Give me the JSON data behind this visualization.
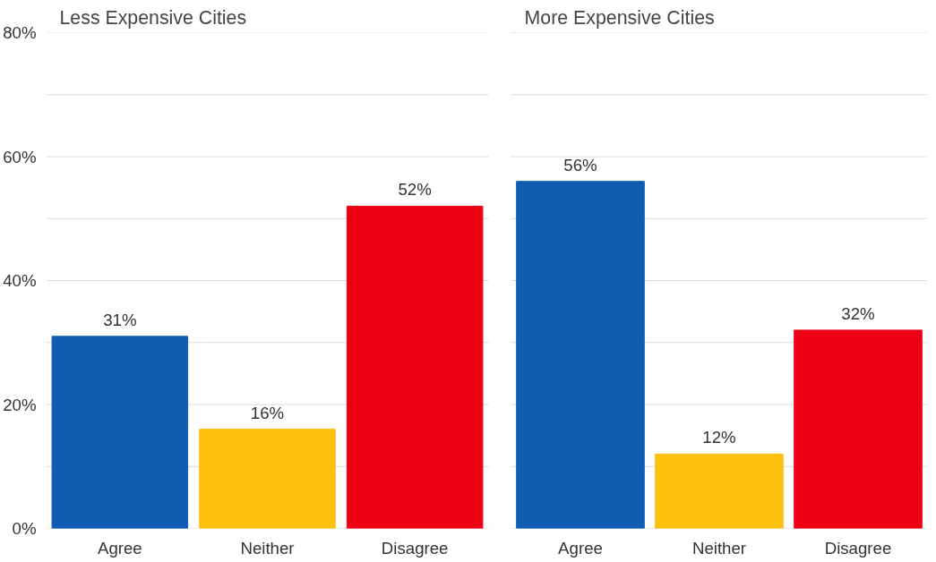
{
  "chart_data": [
    {
      "type": "bar",
      "title": "Less Expensive Cities",
      "categories": [
        "Agree",
        "Neither",
        "Disagree"
      ],
      "values": [
        31,
        16,
        52
      ],
      "colors": [
        "#0f5db3",
        "#fcc10f",
        "#ee0014"
      ],
      "ylim": [
        0,
        80
      ],
      "yticks": [
        {
          "value": 0,
          "label": "0%"
        },
        {
          "value": 10,
          "label": null
        },
        {
          "value": 20,
          "label": "20%"
        },
        {
          "value": 30,
          "label": null
        },
        {
          "value": 40,
          "label": "40%"
        },
        {
          "value": 50,
          "label": null
        },
        {
          "value": 60,
          "label": "60%"
        },
        {
          "value": 70,
          "label": null
        },
        {
          "value": 80,
          "label": "80%"
        }
      ],
      "grid": "y",
      "data_labels": true,
      "value_labels": [
        "31%",
        "16%",
        "52%"
      ]
    },
    {
      "type": "bar",
      "title": "More Expensive Cities",
      "categories": [
        "Agree",
        "Neither",
        "Disagree"
      ],
      "values": [
        56,
        12,
        32
      ],
      "colors": [
        "#0f5db3",
        "#fcc10f",
        "#ee0014"
      ],
      "ylim": [
        0,
        80
      ],
      "yticks": [
        {
          "value": 0,
          "label": null
        },
        {
          "value": 10,
          "label": null
        },
        {
          "value": 20,
          "label": null
        },
        {
          "value": 30,
          "label": null
        },
        {
          "value": 40,
          "label": null
        },
        {
          "value": 50,
          "label": null
        },
        {
          "value": 60,
          "label": null
        },
        {
          "value": 70,
          "label": null
        },
        {
          "value": 80,
          "label": null
        }
      ],
      "grid": "y",
      "data_labels": true,
      "value_labels": [
        "56%",
        "12%",
        "32%"
      ],
      "tick_labels": "x"
    }
  ]
}
